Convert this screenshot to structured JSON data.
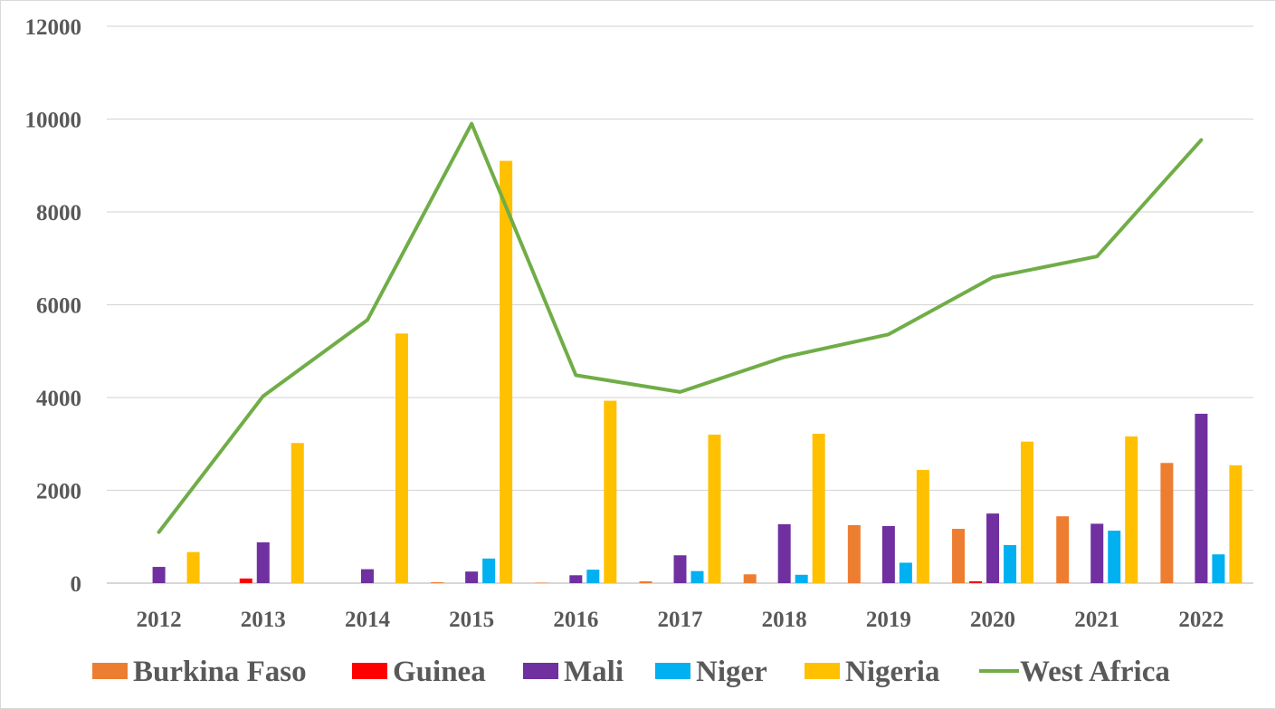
{
  "chart_data": {
    "type": "bar",
    "categories": [
      "2012",
      "2013",
      "2014",
      "2015",
      "2016",
      "2017",
      "2018",
      "2019",
      "2020",
      "2021",
      "2022"
    ],
    "series": [
      {
        "name": "Burkina Faso",
        "kind": "bar",
        "color": "#ED7D31",
        "values": [
          0,
          0,
          0,
          20,
          10,
          40,
          190,
          1250,
          1170,
          1440,
          2590
        ]
      },
      {
        "name": "Guinea",
        "kind": "bar",
        "color": "#FF0000",
        "values": [
          0,
          100,
          0,
          0,
          0,
          0,
          0,
          0,
          40,
          0,
          0
        ]
      },
      {
        "name": "Mali",
        "kind": "bar",
        "color": "#7030A0",
        "values": [
          350,
          880,
          300,
          250,
          170,
          600,
          1270,
          1230,
          1500,
          1280,
          3650
        ]
      },
      {
        "name": "Niger",
        "kind": "bar",
        "color": "#00B0F0",
        "values": [
          0,
          0,
          0,
          530,
          290,
          260,
          180,
          440,
          820,
          1130,
          620
        ]
      },
      {
        "name": "Nigeria",
        "kind": "bar",
        "color": "#FFC000",
        "values": [
          670,
          3020,
          5380,
          9100,
          3930,
          3200,
          3220,
          2440,
          3050,
          3160,
          2540
        ]
      },
      {
        "name": "West Africa",
        "kind": "line",
        "color": "#70AD47",
        "values": [
          1100,
          4030,
          5670,
          9900,
          4480,
          4120,
          4870,
          5360,
          6590,
          7040,
          9550
        ]
      }
    ],
    "y_ticks": [
      "0",
      "2000",
      "4000",
      "6000",
      "8000",
      "10000",
      "12000"
    ],
    "ylim": [
      0,
      12000
    ],
    "grid": true,
    "legend_position": "bottom"
  }
}
